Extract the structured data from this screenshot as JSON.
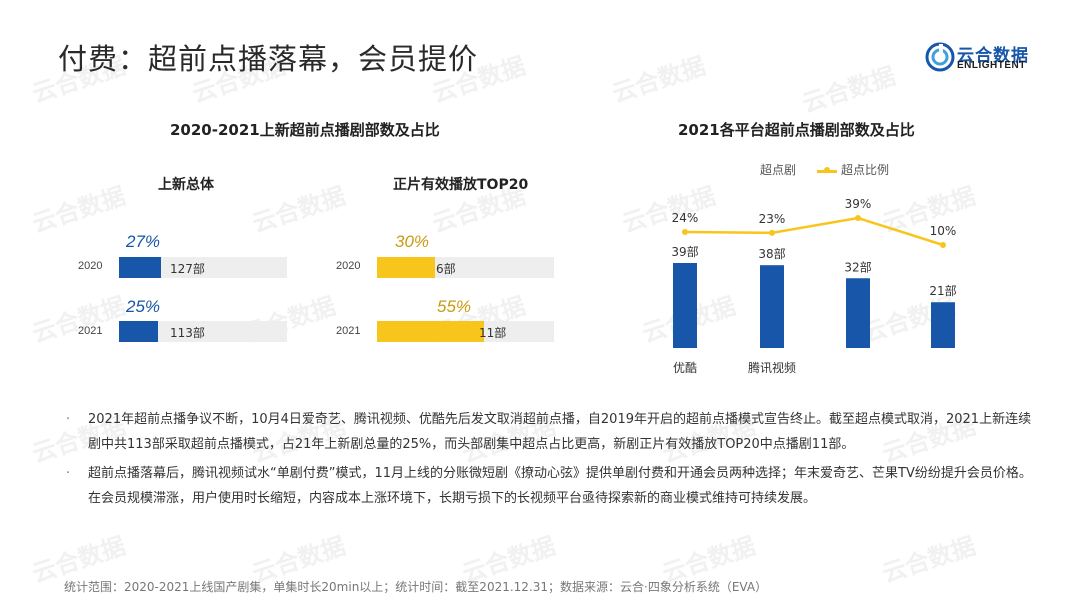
{
  "title": "付费：超前点播落幕，会员提价",
  "logo": {
    "cn": "云合数据",
    "en": "ENLIGHTENT"
  },
  "left_panel": {
    "title": "2020-2021上新超前点播剧部数及占比",
    "groups": [
      {
        "subtitle": "上新总体",
        "color": "#1756a9",
        "rows": [
          {
            "year": "2020",
            "pct_label": "27%",
            "count_label": "127部",
            "fill_fraction": 0.27
          },
          {
            "year": "2021",
            "pct_label": "25%",
            "count_label": "113部",
            "fill_fraction": 0.25
          }
        ]
      },
      {
        "subtitle": "正片有效播放TOP20",
        "color": "#f8c51c",
        "rows": [
          {
            "year": "2020",
            "pct_label": "30%",
            "count_label": "6部",
            "fill_fraction": 0.3
          },
          {
            "year": "2021",
            "pct_label": "55%",
            "count_label": "11部",
            "fill_fraction": 0.55
          }
        ]
      }
    ]
  },
  "chart_data": {
    "type": "bar",
    "title": "2021各平台超前点播剧部数及占比",
    "categories": [
      "优酷",
      "腾讯视频",
      "",
      ""
    ],
    "series": [
      {
        "name": "超点剧",
        "type": "bar",
        "values": [
          39,
          38,
          32,
          21
        ],
        "labels": [
          "39部",
          "38部",
          "32部",
          "21部"
        ],
        "color": "#1756a9"
      },
      {
        "name": "超点比例",
        "type": "line",
        "values": [
          24,
          23,
          39,
          10
        ],
        "labels": [
          "24%",
          "23%",
          "39%",
          "10%"
        ],
        "color": "#f8c51c"
      }
    ],
    "legend": "top",
    "grid": false
  },
  "bullets": [
    "2021年超前点播争议不断，10月4日爱奇艺、腾讯视频、优酷先后发文取消超前点播，自2019年开启的超前点播模式宣告终止。截至超点模式取消，2021上新连续剧中共113部采取超前点播模式，占21年上新剧总量的25%，而头部剧集中超点占比更高，新剧正片有效播放TOP20中点播剧11部。",
    "超前点播落幕后，腾讯视频试水“单剧付费”模式，11月上线的分账微短剧《撩动心弦》提供单剧付费和开通会员两种选择；年末爱奇艺、芒果TV纷纷提升会员价格。在会员规模滞涨，用户使用时长缩短，内容成本上涨环境下，长期亏损下的长视频平台亟待探索新的商业模式维持可持续发展。"
  ],
  "bullet_marker": "·",
  "footer": "统计范围：2020-2021上线国产剧集，单集时长20min以上；统计时间：截至2021.12.31；数据来源：云合·四象分析系统（EVA）",
  "watermark": "云合数据"
}
